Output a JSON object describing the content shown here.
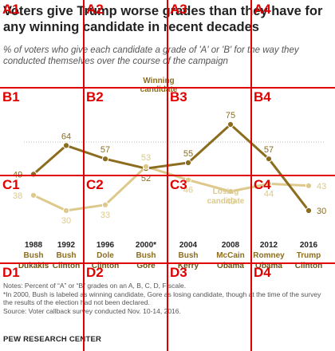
{
  "chart_data": {
    "type": "line",
    "title": "Voters give Trump worse grades than they have for any winning candidate in recent decades",
    "subtitle": "% of voters who give each candidate a grade of 'A' or 'B' for the way they conducted themselves over the course of the campaign",
    "x": [
      "1988",
      "1992",
      "1996",
      "2000*",
      "2004",
      "2008",
      "2012",
      "2016"
    ],
    "winners": [
      "Bush",
      "Bush",
      "Dole",
      "Bush",
      "Bush",
      "McCain",
      "Romney",
      "Trump"
    ],
    "losers": [
      "Dukakis",
      "Clinton",
      "Clinton",
      "Gore",
      "Kerry",
      "Obama",
      "Obama",
      "Clinton"
    ],
    "series": [
      {
        "name": "Winning candidate",
        "values": [
          49,
          64,
          57,
          52,
          55,
          75,
          57,
          30
        ],
        "color": "#8c6d1f"
      },
      {
        "name": "Losing candidate",
        "values": [
          38,
          30,
          33,
          53,
          46,
          40,
          44,
          43
        ],
        "color": "#dcc98b"
      }
    ],
    "ylim": [
      20,
      80
    ],
    "legend": "inline labels"
  },
  "notes": [
    "Notes: Percent of “A” or “B” grades on an A, B, C, D, F scale.",
    "*In 2000, Bush is labeled as winning candidate, Gore as losing candidate, though at the time of the survey the results of the election had not been declared.",
    "Source: Voter callback survey conducted Nov. 10-14, 2016."
  ],
  "source": "PEW RESEARCH CENTER",
  "grid_labels": [
    "A1",
    "A2",
    "A3",
    "A4",
    "B1",
    "B2",
    "B3",
    "B4",
    "C1",
    "C2",
    "C3",
    "C4",
    "D1",
    "D2",
    "D3",
    "D4"
  ]
}
